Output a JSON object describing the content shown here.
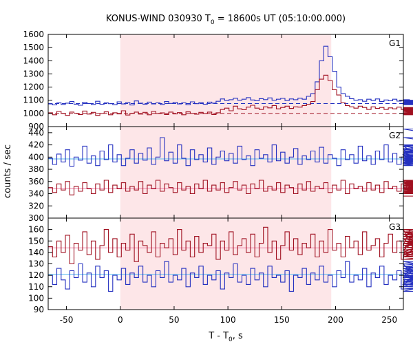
{
  "chart_data": {
    "type": "line",
    "title_main": "KONUS-WIND 030930 T",
    "title_sub": "0",
    "title_rest": " = 18600s UT (05:10:00.000)",
    "xlabel_main": "T - T",
    "xlabel_sub": "0",
    "xlabel_rest": ", s",
    "ylabel": "counts / sec",
    "xlim": [
      -67,
      263
    ],
    "xticks": [
      -50,
      0,
      50,
      100,
      150,
      200,
      250
    ],
    "shaded_interval": [
      0,
      196
    ],
    "colors": {
      "shade": "#fde6e8",
      "blue": "#2430c0",
      "red": "#a01020",
      "cyan": "#55b8ee",
      "pink": "#f080a8"
    },
    "panels": [
      {
        "label": "G1",
        "ylim": [
          900,
          1600
        ],
        "yticks": [
          900,
          1000,
          1100,
          1200,
          1300,
          1400,
          1500,
          1600
        ],
        "series": [
          {
            "color": "blue",
            "bg": 1075,
            "bg_color": "blue",
            "x_start": -67,
            "step": 4,
            "values": [
              1072,
              1065,
              1080,
              1068,
              1078,
              1090,
              1070,
              1062,
              1085,
              1075,
              1068,
              1092,
              1070,
              1080,
              1074,
              1066,
              1088,
              1072,
              1082,
              1064,
              1095,
              1078,
              1070,
              1086,
              1072,
              1080,
              1068,
              1090,
              1076,
              1084,
              1072,
              1080,
              1066,
              1088,
              1074,
              1082,
              1070,
              1086,
              1078,
              1092,
              1110,
              1098,
              1104,
              1115,
              1100,
              1108,
              1120,
              1102,
              1096,
              1112,
              1105,
              1118,
              1100,
              1108,
              1114,
              1098,
              1110,
              1104,
              1116,
              1108,
              1130,
              1150,
              1240,
              1400,
              1510,
              1430,
              1320,
              1200,
              1150,
              1130,
              1112,
              1100,
              1104,
              1092,
              1108,
              1098,
              1110,
              1090,
              1102,
              1096,
              1108,
              1094,
              1100,
              1086,
              1104,
              1092,
              1098,
              1084,
              1096,
              1090,
              1100,
              1086,
              1094,
              1080,
              1090,
              1084,
              1078,
              1092,
              1070,
              1086,
              1076,
              1090,
              1070,
              1084,
              1078,
              1092,
              1072,
              1080,
              1074,
              1066,
              1086,
              1072,
              1082,
              1068,
              1090,
              1076,
              1084,
              1070,
              1088,
              1074,
              1080,
              1072,
              1086,
              1070,
              1082,
              1078,
              1090,
              1074,
              1084,
              1070,
              1088,
              1076,
              1080,
              1074
            ]
          },
          {
            "color": "red",
            "bg": 1000,
            "bg_color": "red",
            "x_start": -67,
            "step": 4,
            "values": [
              1005,
              990,
              1015,
              998,
              985,
              1010,
              1002,
              992,
              1018,
              995,
              1008,
              985,
              1000,
              1012,
              990,
              1005,
              996,
              1020,
              988,
              1002,
              1010,
              995,
              1008,
              990,
              1015,
              998,
              1004,
              992,
              1010,
              996,
              1006,
              990,
              1012,
              1000,
              994,
              1008,
              998,
              1010,
              992,
              1005,
              1030,
              1040,
              1020,
              1055,
              1035,
              1028,
              1048,
              1062,
              1040,
              1030,
              1050,
              1042,
              1060,
              1035,
              1045,
              1055,
              1038,
              1050,
              1048,
              1060,
              1070,
              1090,
              1180,
              1260,
              1290,
              1250,
              1180,
              1140,
              1080,
              1060,
              1050,
              1040,
              1055,
              1045,
              1030,
              1050,
              1038,
              1045,
              1030,
              1042,
              1035,
              1048,
              1030,
              1040,
              1028,
              1045,
              1032,
              1040,
              1025,
              1038,
              1030,
              1042,
              1020,
              1035,
              1028,
              1015,
              1030,
              1008,
              1022,
              1010,
              1025,
              1005,
              1018,
              1000,
              1015,
              995,
              1012,
              1002,
              1018,
              998,
              1010,
              992,
              1008,
              1000,
              1015,
              994,
              1006,
              1012,
              990,
              1008,
              1000,
              1016,
              994,
              1010,
              1002,
              1018,
              996,
              1008,
              1000,
              1014,
              995
            ]
          }
        ]
      },
      {
        "label": "G2",
        "ylim": [
          300,
          450
        ],
        "yticks": [
          300,
          320,
          340,
          360,
          380,
          400,
          420,
          440
        ],
        "series": [
          {
            "color": "blue",
            "bg": 397,
            "bg_color": "cyan",
            "x_start": -67,
            "step": 4,
            "values": [
              398,
              388,
              405,
              392,
              412,
              385,
              400,
              395,
              418,
              390,
              402,
              386,
              410,
              396,
              420,
              392,
              404,
              386,
              398,
              412,
              390,
              406,
              395,
              415,
              388,
              400,
              432,
              394,
              408,
              390,
              420,
              398,
              386,
              412,
              396,
              404,
              392,
              415,
              388,
              400,
              410,
              394,
              406,
              390,
              418,
              396,
              402,
              386,
              412,
              398,
              404,
              392,
              420,
              394,
              408,
              390,
              400,
              414,
              388,
              402,
              396,
              410,
              392,
              416,
              390,
              404,
              398,
              386,
              412,
              396,
              404,
              390,
              418,
              394,
              402,
              388,
              410,
              396,
              420,
              392,
              406,
              388,
              400,
              414,
              396,
              404,
              390,
              418,
              394,
              402,
              388,
              410,
              396,
              420,
              392,
              406,
              388,
              400,
              414,
              396,
              404,
              390,
              418,
              394,
              402,
              388,
              410,
              396,
              420,
              392,
              404,
              390,
              412,
              400,
              396,
              408,
              392,
              420,
              386,
              412,
              398,
              432,
              394,
              408,
              390,
              420,
              398,
              446,
              392,
              410
            ]
          },
          {
            "color": "red",
            "bg": 349,
            "bg_color": "pink",
            "x_start": -67,
            "step": 4,
            "values": [
              350,
              342,
              356,
              346,
              360,
              338,
              352,
              344,
              358,
              348,
              340,
              356,
              346,
              362,
              342,
              354,
              348,
              358,
              344,
              352,
              346,
              360,
              340,
              354,
              348,
              362,
              344,
              356,
              350,
              342,
              358,
              346,
              352,
              340,
              356,
              348,
              362,
              344,
              354,
              346,
              358,
              342,
              350,
              360,
              346,
              354,
              340,
              356,
              348,
              362,
              344,
              352,
              346,
              358,
              342,
              354,
              350,
              340,
              356,
              346,
              360,
              344,
              352,
              348,
              358,
              342,
              354,
              346,
              362,
              340,
              356,
              348,
              352,
              344,
              358,
              346,
              354,
              342,
              360,
              348,
              352,
              344,
              356,
              340,
              362,
              346,
              354,
              348,
              358,
              344,
              350,
              342,
              356,
              346,
              360,
              340,
              354,
              348,
              362,
              344,
              352,
              346,
              358,
              342,
              354,
              350,
              340,
              356,
              346,
              360,
              344,
              352,
              348,
              358,
              342,
              354,
              346,
              362,
              340,
              356,
              348,
              352,
              344,
              358,
              346,
              354,
              342,
              360,
              348,
              336
            ]
          }
        ]
      },
      {
        "label": "G3",
        "ylim": [
          90,
          170
        ],
        "yticks": [
          90,
          100,
          110,
          120,
          130,
          140,
          150,
          160
        ],
        "series": [
          {
            "color": "red",
            "bg": 144,
            "bg_color": "pink",
            "x_start": -67,
            "step": 4,
            "values": [
              145,
              136,
              150,
              140,
              155,
              130,
              148,
              142,
              158,
              138,
              150,
              134,
              146,
              160,
              140,
              152,
              136,
              148,
              142,
              156,
              132,
              150,
              146,
              140,
              158,
              136,
              148,
              144,
              152,
              138,
              160,
              142,
              150,
              136,
              154,
              140,
              148,
              146,
              156,
              134,
              150,
              142,
              158,
              138,
              146,
              152,
              140,
              156,
              136,
              148,
              162,
              140,
              150,
              134,
              146,
              158,
              142,
              152,
              138,
              148,
              144,
              156,
              136,
              150,
              140,
              160,
              142,
              148,
              136,
              154,
              144,
              150,
              138,
              158,
              142,
              146,
              152,
              136,
              148,
              156,
              140,
              150,
              134,
              146,
              160,
              142,
              152,
              138,
              148,
              144,
              156,
              136,
              150,
              140,
              158,
              142,
              148,
              136,
              154,
              144,
              150,
              138,
              158,
              142,
              146,
              152,
              136,
              148,
              156,
              140,
              150,
              134,
              146,
              160,
              142,
              152,
              138,
              148,
              144,
              156,
              136,
              150,
              140,
              158,
              142,
              148,
              136,
              154,
              144,
              150
            ]
          },
          {
            "color": "blue",
            "bg": 121,
            "bg_color": "cyan",
            "x_start": -67,
            "step": 4,
            "values": [
              120,
              112,
              126,
              116,
              108,
              124,
              118,
              130,
              114,
              122,
              110,
              128,
              118,
              124,
              106,
              120,
              116,
              126,
              112,
              122,
              118,
              128,
              114,
              120,
              110,
              124,
              118,
              132,
              114,
              120,
              116,
              126,
              110,
              122,
              118,
              128,
              112,
              120,
              116,
              124,
              108,
              122,
              118,
              130,
              114,
              120,
              112,
              126,
              116,
              122,
              110,
              128,
              118,
              120,
              114,
              124,
              106,
              120,
              118,
              126,
              112,
              122,
              116,
              128,
              114,
              120,
              110,
              124,
              118,
              132,
              114,
              120,
              116,
              126,
              110,
              122,
              118,
              128,
              112,
              120,
              116,
              124,
              108,
              122,
              118,
              130,
              114,
              120,
              112,
              126,
              116,
              122,
              110,
              128,
              118,
              120,
              114,
              124,
              106,
              120,
              118,
              126,
              112,
              122,
              116,
              128,
              114,
              120,
              110,
              124,
              118,
              132,
              114,
              120,
              116,
              126,
              110,
              122,
              118,
              128,
              112,
              120,
              116,
              124,
              108,
              122,
              118,
              130,
              114,
              120
            ]
          }
        ]
      }
    ]
  }
}
